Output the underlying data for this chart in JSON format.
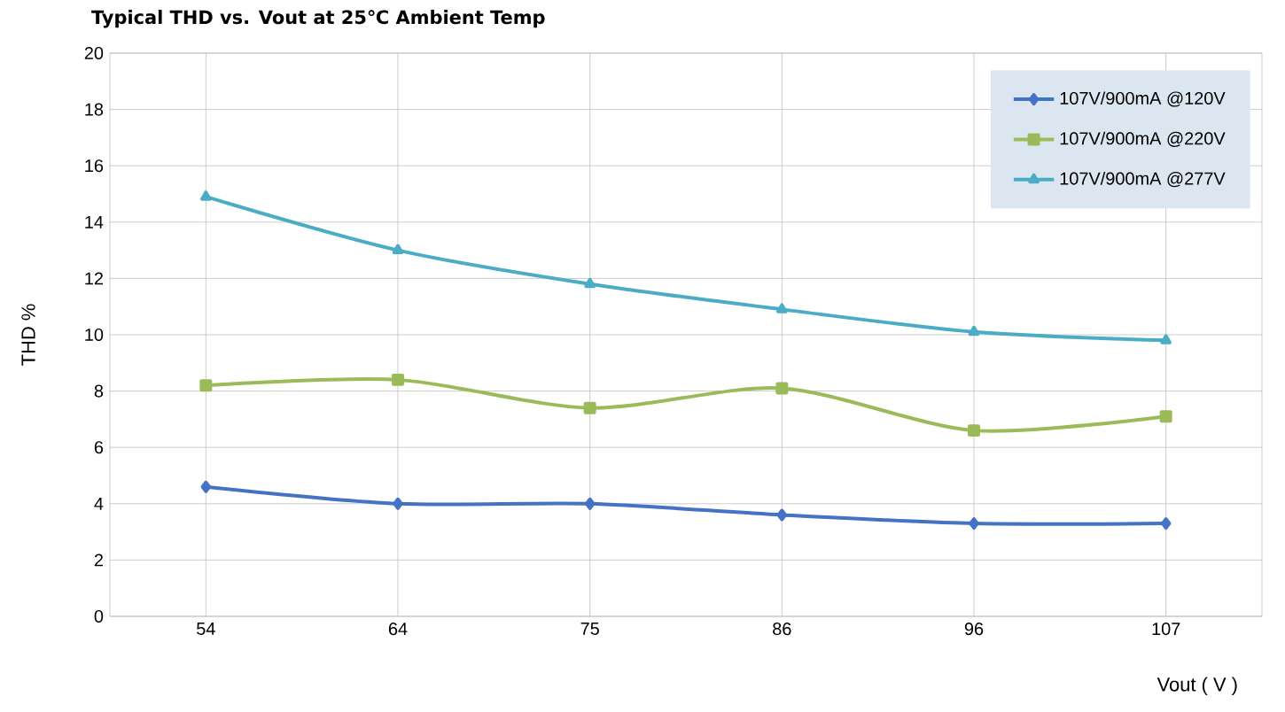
{
  "chart_data": {
    "type": "line",
    "title": "Typical THD vs. Vout at 25℃ Ambient Temp",
    "xlabel": "Vout ( V )",
    "ylabel": "THD %",
    "categories": [
      "54",
      "64",
      "75",
      "86",
      "96",
      "107"
    ],
    "series": [
      {
        "name": "107V/900mA @120V",
        "color": "#4472c4",
        "marker": "diamond",
        "values": [
          4.6,
          4.0,
          4.0,
          3.6,
          3.3,
          3.3
        ]
      },
      {
        "name": "107V/900mA @220V",
        "color": "#9bbb59",
        "marker": "square",
        "values": [
          8.2,
          8.4,
          7.4,
          8.1,
          6.6,
          7.1
        ]
      },
      {
        "name": "107V/900mA @277V",
        "color": "#4bacc6",
        "marker": "triangle",
        "values": [
          14.9,
          13.0,
          11.8,
          10.9,
          10.1,
          9.8
        ]
      }
    ],
    "ylim": [
      0,
      20
    ],
    "yticks": [
      0,
      2,
      4,
      6,
      8,
      10,
      12,
      14,
      16,
      18,
      20
    ],
    "grid": true,
    "legend": "top right",
    "line_style": "solid"
  }
}
